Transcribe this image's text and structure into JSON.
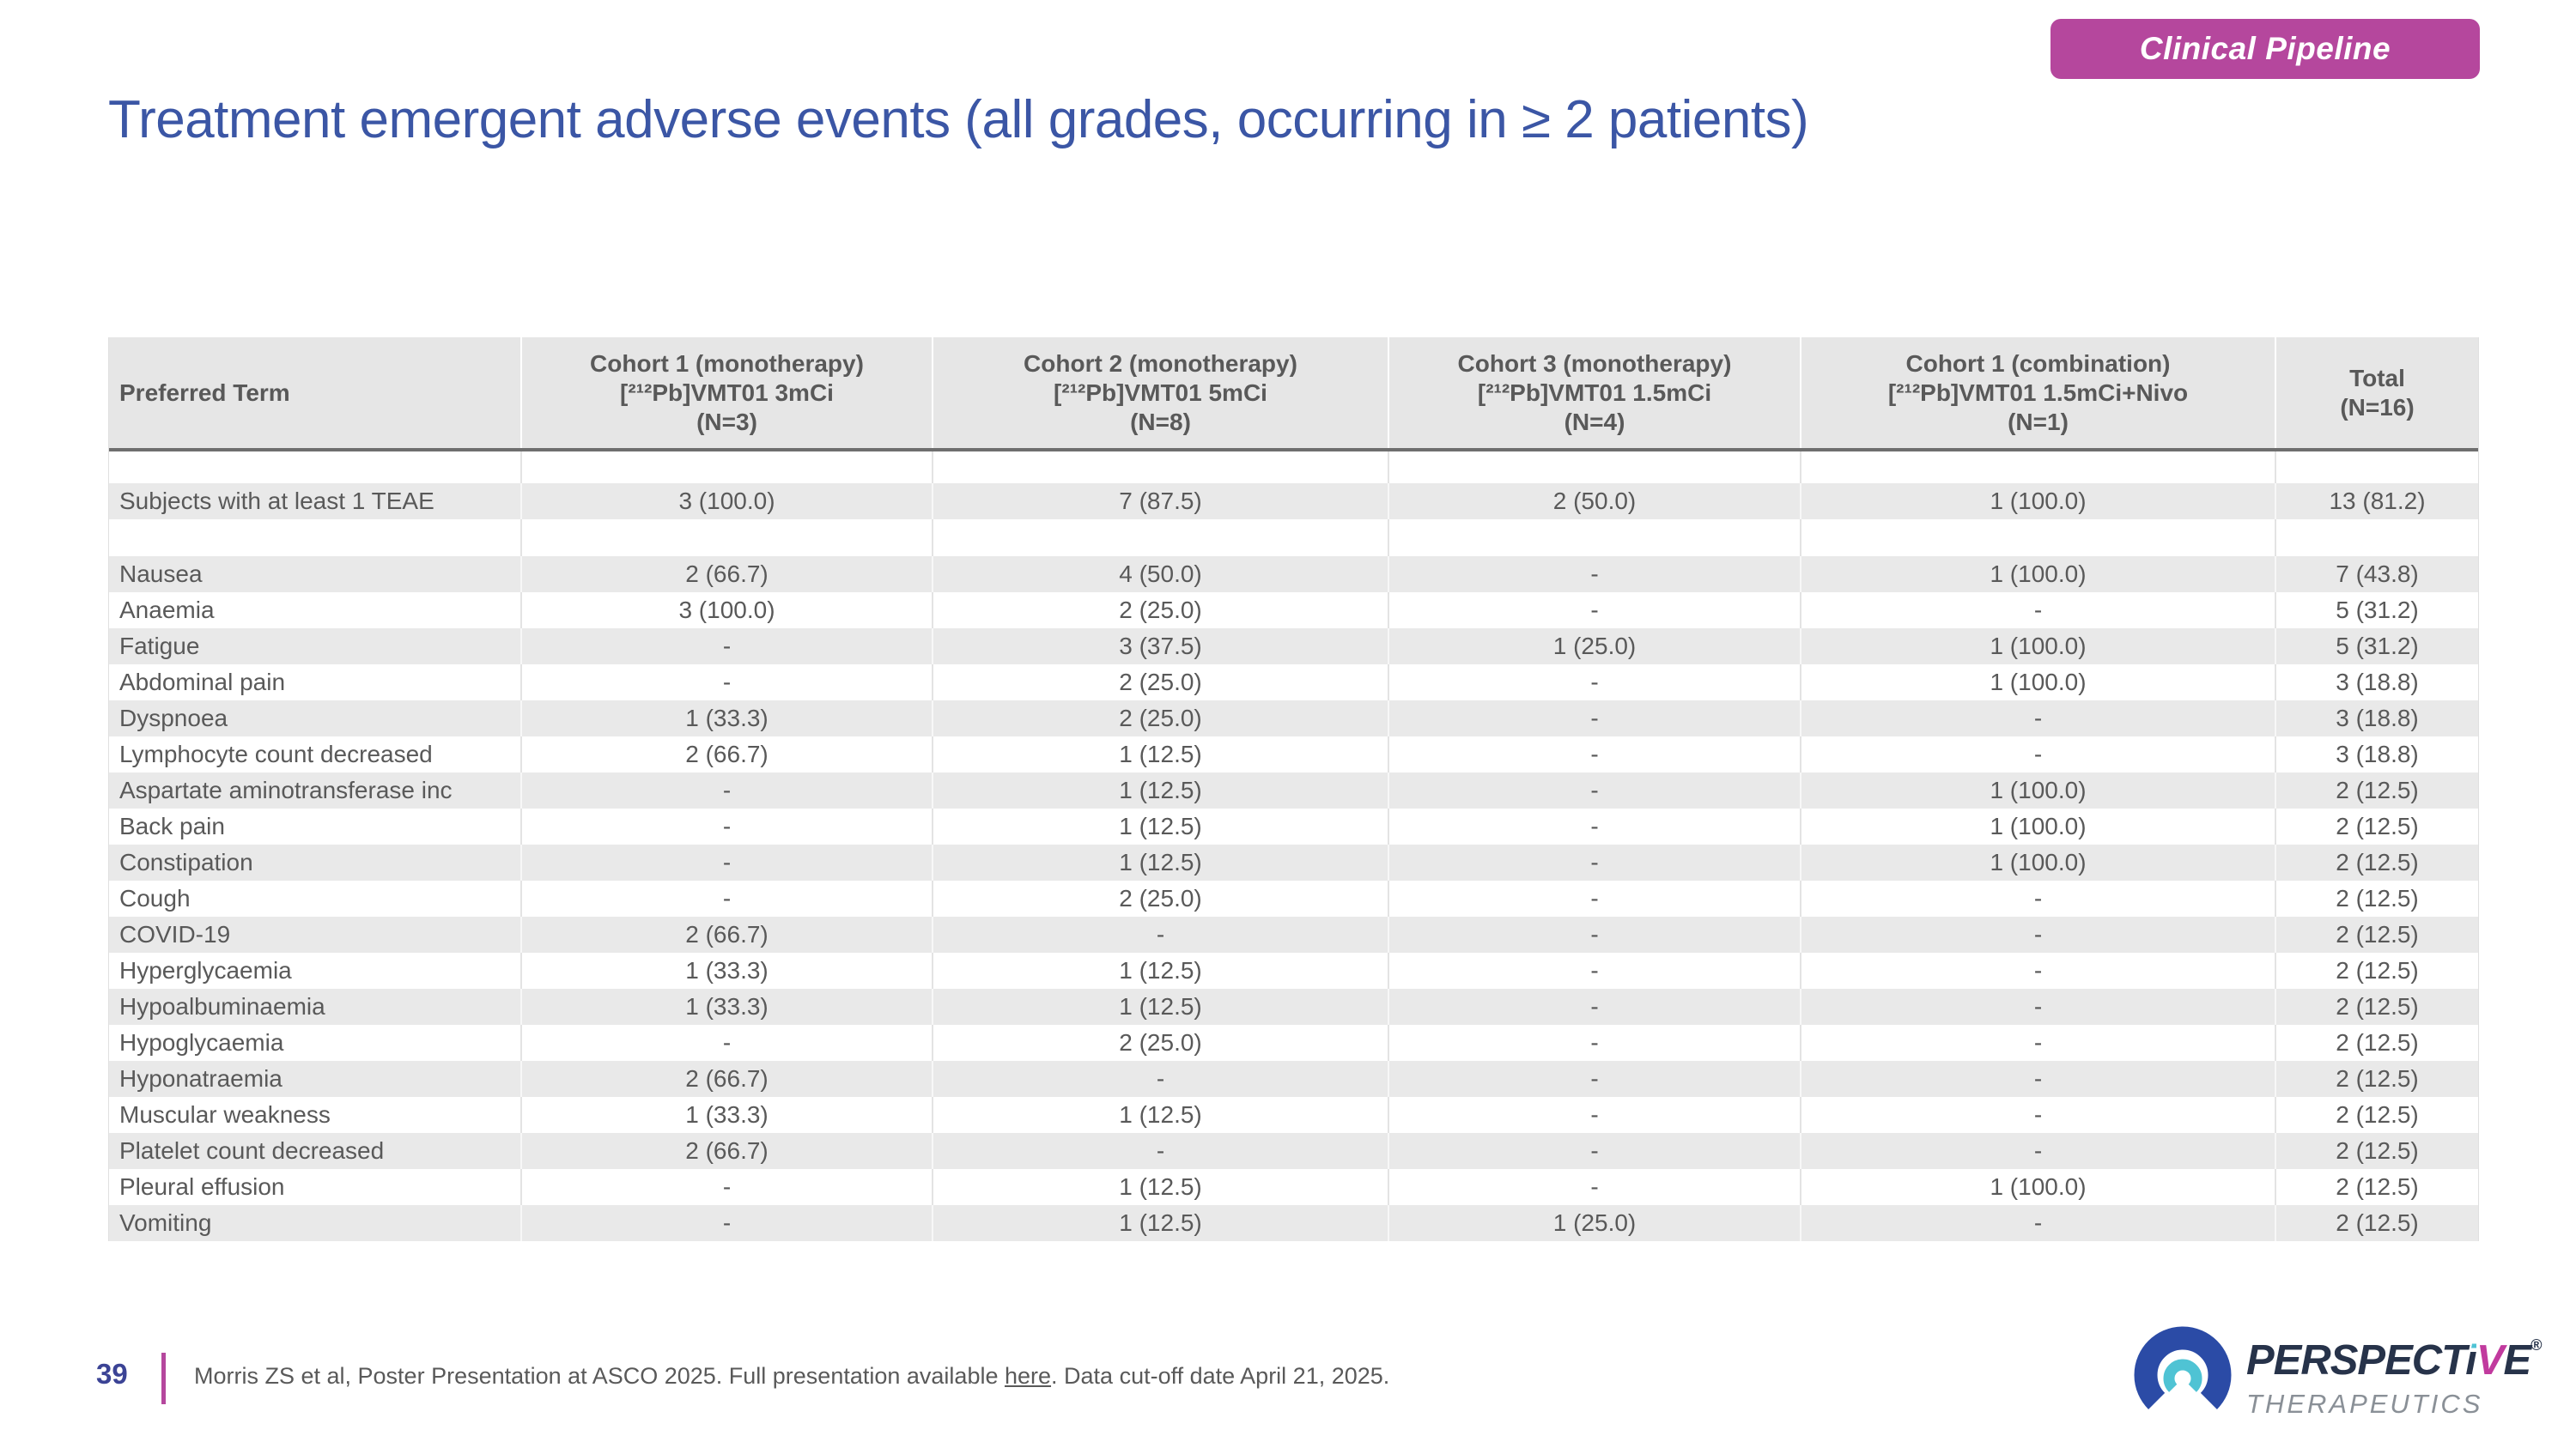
{
  "badge": {
    "label": "Clinical Pipeline",
    "bg_color": "#b5479d",
    "text_color": "#ffffff"
  },
  "title": {
    "text": "Treatment emergent adverse events (all grades, occurring in ≥ 2 patients)",
    "color": "#3b56a5"
  },
  "table": {
    "header": [
      {
        "lines": [
          "Preferred Term"
        ]
      },
      {
        "lines": [
          "Cohort 1 (monotherapy)",
          "[²¹²Pb]VMT01 3mCi",
          "(N=3)"
        ]
      },
      {
        "lines": [
          "Cohort 2 (monotherapy)",
          "[²¹²Pb]VMT01 5mCi",
          "(N=8)"
        ]
      },
      {
        "lines": [
          "Cohort 3 (monotherapy)",
          "[²¹²Pb]VMT01 1.5mCi",
          "(N=4)"
        ]
      },
      {
        "lines": [
          "Cohort 1 (combination)",
          "[²¹²Pb]VMT01 1.5mCi+Nivo",
          "(N=1)"
        ]
      },
      {
        "lines": [
          "Total",
          "(N=16)"
        ]
      }
    ],
    "rows": [
      {
        "type": "spacer1"
      },
      {
        "type": "data",
        "shaded": true,
        "term": "Subjects with at least 1 TEAE",
        "values": [
          "3 (100.0)",
          "7 (87.5)",
          "2 (50.0)",
          "1 (100.0)",
          "13 (81.2)"
        ]
      },
      {
        "type": "spacer2"
      },
      {
        "type": "data",
        "shaded": true,
        "term": "Nausea",
        "values": [
          "2 (66.7)",
          "4 (50.0)",
          "-",
          "1 (100.0)",
          "7 (43.8)"
        ]
      },
      {
        "type": "data",
        "shaded": false,
        "term": "Anaemia",
        "values": [
          "3 (100.0)",
          "2 (25.0)",
          "-",
          "-",
          "5 (31.2)"
        ]
      },
      {
        "type": "data",
        "shaded": true,
        "term": "Fatigue",
        "values": [
          "-",
          "3 (37.5)",
          "1 (25.0)",
          "1 (100.0)",
          "5 (31.2)"
        ]
      },
      {
        "type": "data",
        "shaded": false,
        "term": "Abdominal pain",
        "values": [
          "-",
          "2 (25.0)",
          "-",
          "1 (100.0)",
          "3 (18.8)"
        ]
      },
      {
        "type": "data",
        "shaded": true,
        "term": "Dyspnoea",
        "values": [
          "1 (33.3)",
          "2 (25.0)",
          "-",
          "-",
          "3 (18.8)"
        ]
      },
      {
        "type": "data",
        "shaded": false,
        "term": "Lymphocyte count decreased",
        "values": [
          "2 (66.7)",
          "1 (12.5)",
          "-",
          "-",
          "3 (18.8)"
        ]
      },
      {
        "type": "data",
        "shaded": true,
        "term": "Aspartate aminotransferase inc",
        "values": [
          "-",
          "1 (12.5)",
          "-",
          "1 (100.0)",
          "2 (12.5)"
        ]
      },
      {
        "type": "data",
        "shaded": false,
        "term": "Back pain",
        "values": [
          "-",
          "1 (12.5)",
          "-",
          "1 (100.0)",
          "2 (12.5)"
        ]
      },
      {
        "type": "data",
        "shaded": true,
        "term": "Constipation",
        "values": [
          "-",
          "1 (12.5)",
          "-",
          "1 (100.0)",
          "2 (12.5)"
        ]
      },
      {
        "type": "data",
        "shaded": false,
        "term": "Cough",
        "values": [
          "-",
          "2 (25.0)",
          "-",
          "-",
          "2 (12.5)"
        ]
      },
      {
        "type": "data",
        "shaded": true,
        "term": "COVID-19",
        "values": [
          "2 (66.7)",
          "-",
          "-",
          "-",
          "2 (12.5)"
        ]
      },
      {
        "type": "data",
        "shaded": false,
        "term": "Hyperglycaemia",
        "values": [
          "1 (33.3)",
          "1 (12.5)",
          "-",
          "-",
          "2 (12.5)"
        ]
      },
      {
        "type": "data",
        "shaded": true,
        "term": "Hypoalbuminaemia",
        "values": [
          "1 (33.3)",
          "1 (12.5)",
          "-",
          "-",
          "2 (12.5)"
        ]
      },
      {
        "type": "data",
        "shaded": false,
        "term": "Hypoglycaemia",
        "values": [
          "-",
          "2 (25.0)",
          "-",
          "-",
          "2 (12.5)"
        ]
      },
      {
        "type": "data",
        "shaded": true,
        "term": "Hyponatraemia",
        "values": [
          "2 (66.7)",
          "-",
          "-",
          "-",
          "2 (12.5)"
        ]
      },
      {
        "type": "data",
        "shaded": false,
        "term": "Muscular weakness",
        "values": [
          "1 (33.3)",
          "1 (12.5)",
          "-",
          "-",
          "2 (12.5)"
        ]
      },
      {
        "type": "data",
        "shaded": true,
        "term": "Platelet count decreased",
        "values": [
          "2 (66.7)",
          "-",
          "-",
          "-",
          "2 (12.5)"
        ]
      },
      {
        "type": "data",
        "shaded": false,
        "term": "Pleural effusion",
        "values": [
          "-",
          "1 (12.5)",
          "-",
          "1 (100.0)",
          "2 (12.5)"
        ]
      },
      {
        "type": "data",
        "shaded": true,
        "term": "Vomiting",
        "values": [
          "-",
          "1 (12.5)",
          "1 (25.0)",
          "-",
          "2 (12.5)"
        ]
      }
    ]
  },
  "footer": {
    "page_number": "39",
    "citation_prefix": "Morris ZS et al, Poster Presentation at ASCO 2025. Full presentation available ",
    "link_text": "here",
    "citation_suffix": ". Data cut-off date April 21, 2025.",
    "accent_bar_color": "#b5479d"
  },
  "logo": {
    "word_main": "PERSPECT",
    "word_i": "i",
    "word_v": "V",
    "word_e": "E",
    "registered": "®",
    "subtitle": "THERAPEUTICS",
    "blue": "#2b4ba6",
    "teal": "#4fc3d4",
    "magenta": "#c13a9e"
  }
}
